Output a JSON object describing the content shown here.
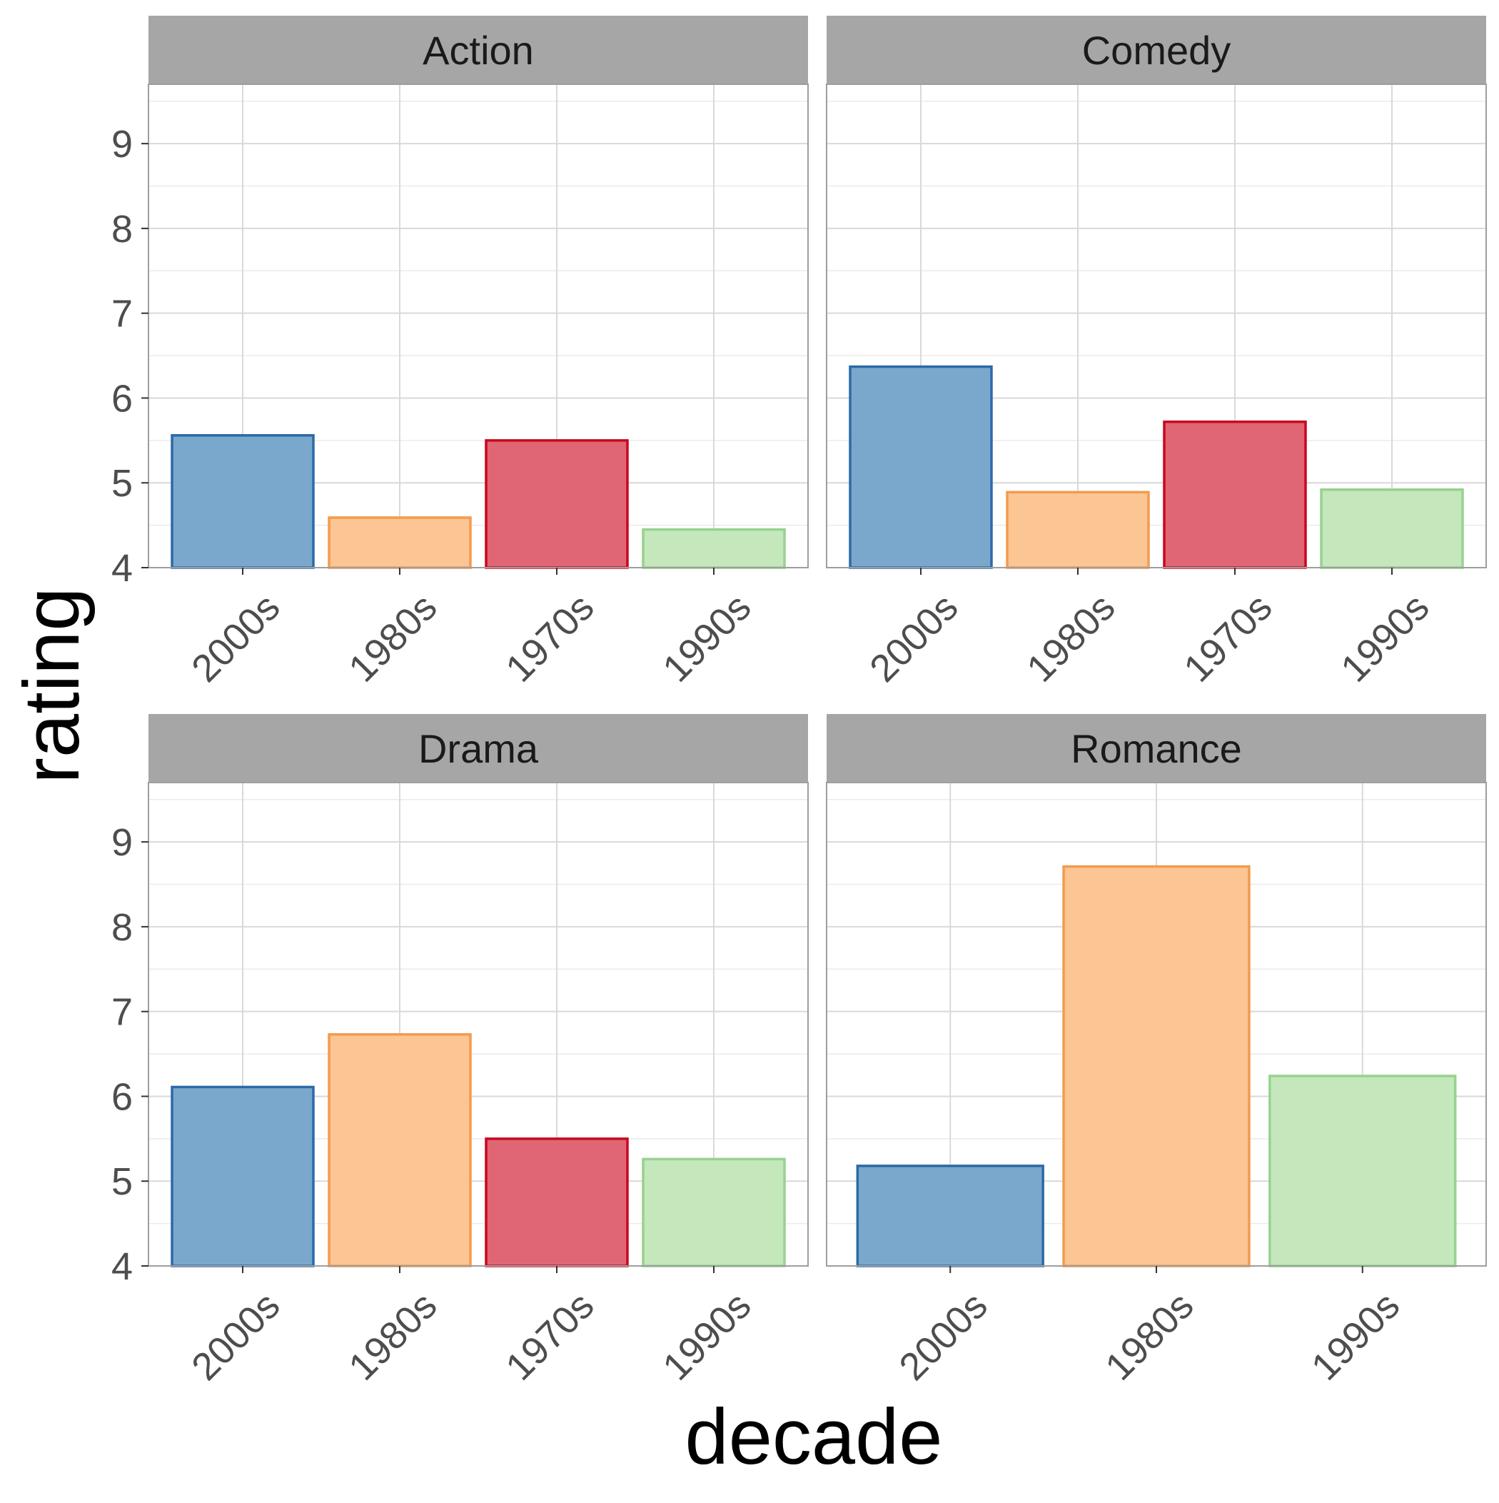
{
  "chart_data": {
    "type": "bar",
    "xlabel": "decade",
    "ylabel": "rating",
    "ylim": [
      4,
      9.7
    ],
    "yticks": [
      4,
      5,
      6,
      7,
      8,
      9
    ],
    "grid": true,
    "colors": {
      "2000s": {
        "fill": "#7aa8cd",
        "stroke": "#2b6aa6"
      },
      "1980s": {
        "fill": "#fbc594",
        "stroke": "#f39b4e"
      },
      "1970s": {
        "fill": "#e06674",
        "stroke": "#c9071f"
      },
      "1990s": {
        "fill": "#c4e7bb",
        "stroke": "#97d28f"
      }
    },
    "panels": [
      {
        "name": "Action",
        "categories": [
          "2000s",
          "1980s",
          "1970s",
          "1990s"
        ],
        "values": [
          5.56,
          4.59,
          5.5,
          4.45
        ]
      },
      {
        "name": "Comedy",
        "categories": [
          "2000s",
          "1980s",
          "1970s",
          "1990s"
        ],
        "values": [
          6.37,
          4.89,
          5.72,
          4.92
        ]
      },
      {
        "name": "Drama",
        "categories": [
          "2000s",
          "1980s",
          "1970s",
          "1990s"
        ],
        "values": [
          6.11,
          6.73,
          5.5,
          5.26
        ]
      },
      {
        "name": "Romance",
        "categories": [
          "2000s",
          "1980s",
          "1990s"
        ],
        "values": [
          5.18,
          8.71,
          6.24
        ]
      }
    ]
  }
}
